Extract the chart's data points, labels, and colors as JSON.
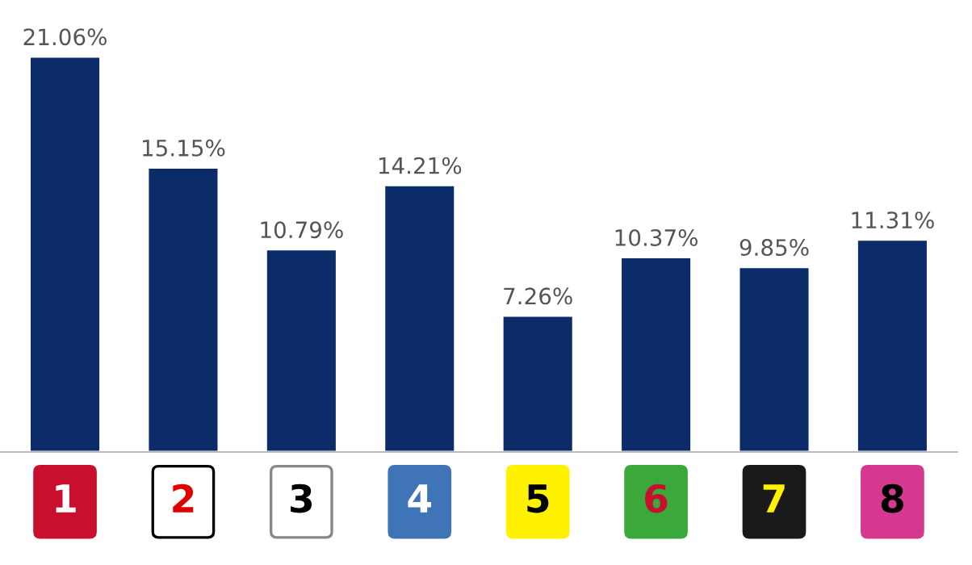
{
  "chart_data": {
    "type": "bar",
    "categories": [
      "1",
      "2",
      "3",
      "4",
      "5",
      "6",
      "7",
      "8"
    ],
    "values": [
      21.06,
      15.15,
      10.79,
      14.21,
      7.26,
      10.37,
      9.85,
      11.31
    ],
    "value_labels": [
      "21.06%",
      "15.15%",
      "10.79%",
      "14.21%",
      "7.26%",
      "10.37%",
      "9.85%",
      "11.31%"
    ],
    "color": "#0c2b69",
    "grid": false,
    "legend": false
  }
}
